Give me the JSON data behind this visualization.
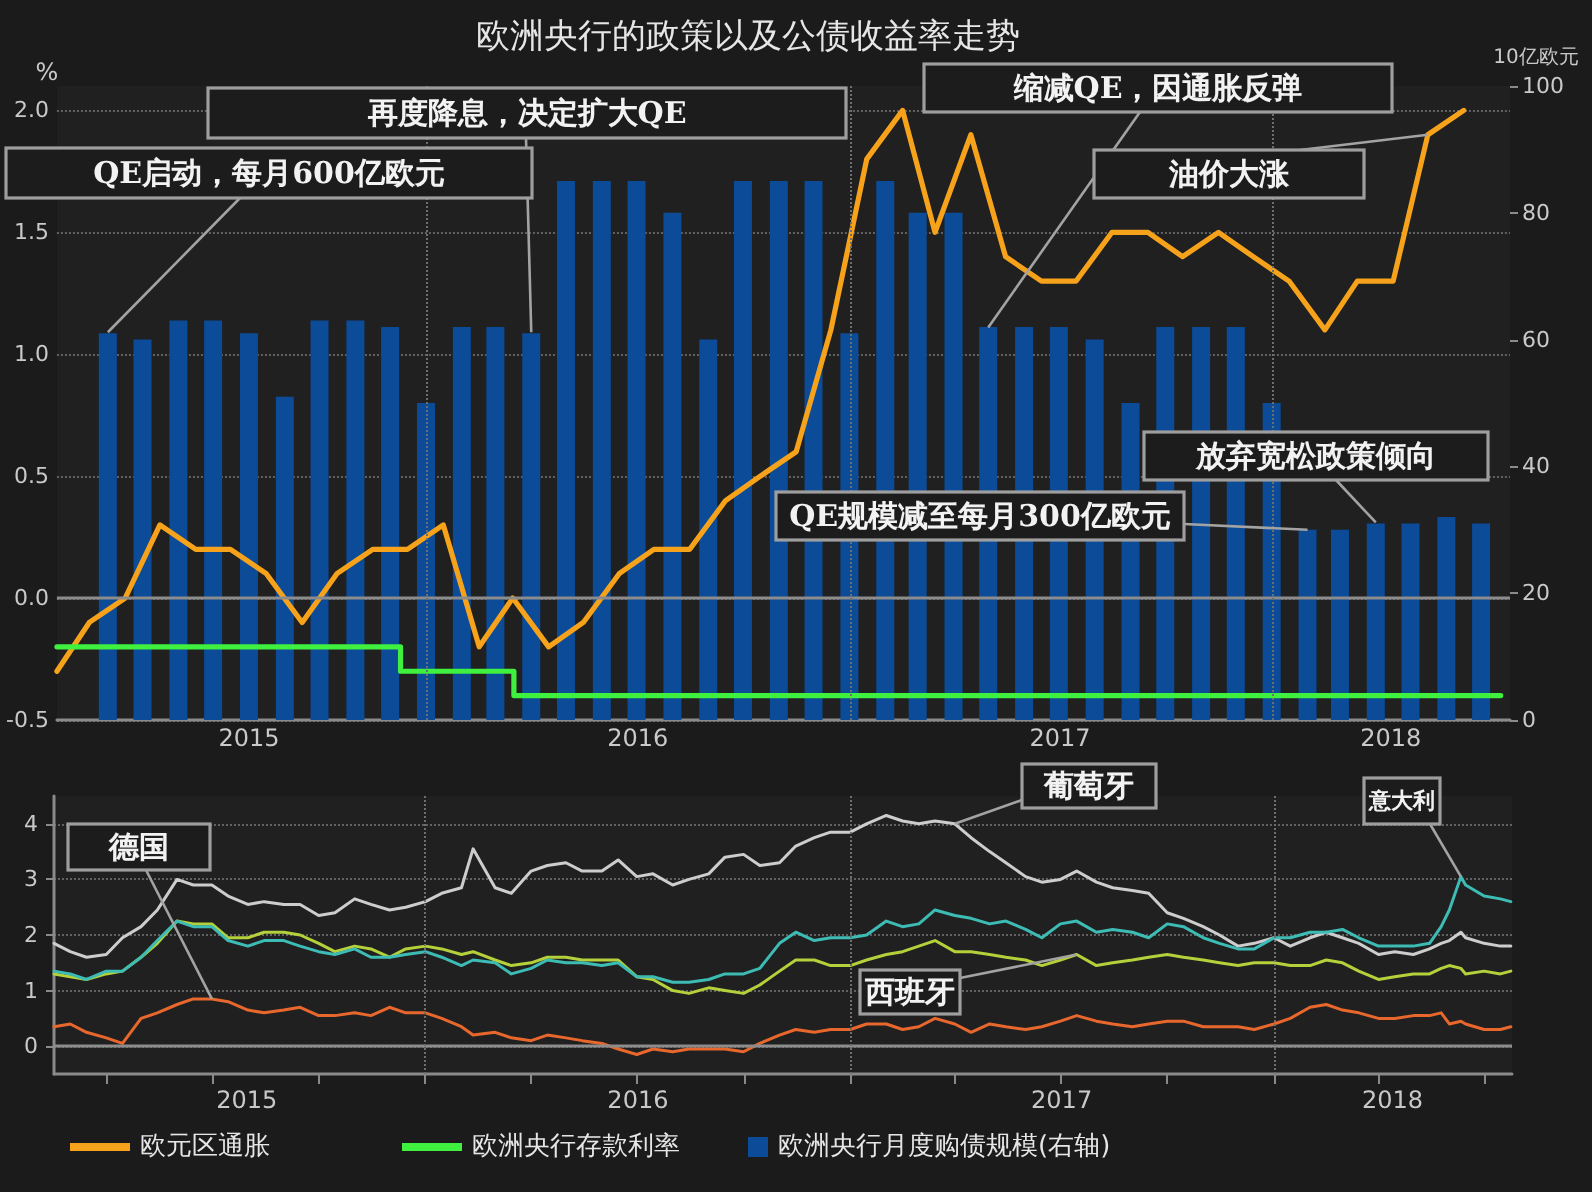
{
  "chart_data": [
    {
      "type": "line",
      "title": "欧洲央行的政策以及公债收益率走势",
      "ylabel": "%",
      "y2label": "10亿欧元",
      "xlim": [
        "2015-02-15",
        "2018-07-25"
      ],
      "xticks": [
        {
          "value": "2015-07-31",
          "label": "2015"
        },
        {
          "value": "2016-07-01",
          "label": "2016"
        },
        {
          "value": "2017-07-01",
          "label": "2017"
        },
        {
          "value": "2018-04-13",
          "label": "2018"
        }
      ],
      "ylim": [
        -0.5,
        2.1
      ],
      "yticks": [
        -0.5,
        {
          "value": 0,
          "label": "0.0"
        },
        0.5,
        {
          "value": 1,
          "label": "1.0"
        },
        1.5,
        {
          "value": 2,
          "label": "2.0"
        }
      ],
      "y2lim": [
        0,
        100
      ],
      "y2ticks": [
        0,
        20,
        40,
        60,
        80,
        100
      ],
      "grid": "y",
      "legend": "bottom",
      "marker": "none",
      "series": [
        {
          "name": "欧元区通胀",
          "color": "#f7a21b",
          "x": [
            "2015-02-15",
            "2015-03-15",
            "2015-04-15",
            "2015-05-15",
            "2015-06-15",
            "2015-07-15",
            "2015-08-15",
            "2015-09-15",
            "2015-10-15",
            "2015-11-15",
            "2015-12-15",
            "2016-01-15",
            "2016-02-15",
            "2016-03-15",
            "2016-04-15",
            "2016-05-15",
            "2016-06-15",
            "2016-07-15",
            "2016-08-15",
            "2016-09-15",
            "2016-10-15",
            "2016-11-15",
            "2016-12-15",
            "2017-01-15",
            "2017-02-15",
            "2017-03-15",
            "2017-04-15",
            "2017-05-15",
            "2017-06-15",
            "2017-07-15",
            "2017-08-15",
            "2017-09-15",
            "2017-10-15",
            "2017-11-15",
            "2017-12-15",
            "2018-01-15",
            "2018-02-15",
            "2018-03-15",
            "2018-04-15",
            "2018-05-15",
            "2018-06-15"
          ],
          "values": [
            -0.3,
            -0.1,
            0.0,
            0.3,
            0.2,
            0.2,
            0.1,
            -0.1,
            0.1,
            0.2,
            0.2,
            0.3,
            -0.2,
            0.0,
            -0.2,
            -0.1,
            0.1,
            0.2,
            0.2,
            0.4,
            0.5,
            0.6,
            1.1,
            1.8,
            2.0,
            1.5,
            1.9,
            1.4,
            1.3,
            1.3,
            1.5,
            1.5,
            1.4,
            1.5,
            1.4,
            1.3,
            1.1,
            1.3,
            1.3,
            1.9,
            2.0
          ]
        },
        {
          "name": "欧洲央行存款利率",
          "type": "step",
          "color": "#3ff03f",
          "x": [
            "2015-02-15",
            "2015-12-09",
            "2016-03-16",
            "2018-07-17"
          ],
          "values": [
            -0.2,
            -0.3,
            -0.4,
            -0.4
          ]
        },
        {
          "name": "欧洲央行月度购债规模(右轴)",
          "type": "bar",
          "axis": "y2",
          "color": "#0b4b98",
          "x": [
            "2015-03-31",
            "2015-04-30",
            "2015-05-31",
            "2015-06-30",
            "2015-07-31",
            "2015-08-31",
            "2015-09-30",
            "2015-10-31",
            "2015-11-30",
            "2015-12-31",
            "2016-01-31",
            "2016-02-29",
            "2016-03-31",
            "2016-04-30",
            "2016-05-31",
            "2016-06-30",
            "2016-07-31",
            "2016-08-31",
            "2016-09-30",
            "2016-10-31",
            "2016-11-30",
            "2016-12-31",
            "2017-01-31",
            "2017-02-28",
            "2017-03-31",
            "2017-04-30",
            "2017-05-31",
            "2017-06-30",
            "2017-07-31",
            "2017-08-31",
            "2017-09-30",
            "2017-10-31",
            "2017-11-30",
            "2017-12-31",
            "2018-01-31",
            "2018-02-28",
            "2018-03-31",
            "2018-04-30",
            "2018-05-31",
            "2018-06-30"
          ],
          "values": [
            61,
            60,
            63,
            63,
            61,
            51,
            63,
            63,
            62,
            50,
            62,
            62,
            61,
            85,
            85,
            85,
            80,
            60,
            85,
            85,
            85,
            61,
            85,
            80,
            80,
            62,
            62,
            62,
            60,
            50,
            62,
            62,
            62,
            50,
            30,
            30,
            31,
            31,
            32,
            31
          ]
        }
      ],
      "ref_lines": [
        {
          "axis": "y",
          "value": 0,
          "line_style": "solid",
          "color": "#8c8c8c"
        },
        {
          "axis": "x",
          "value": "2016-01-01",
          "line_style": "dotted",
          "color": "#6e6e6e"
        },
        {
          "axis": "x",
          "value": "2017-01-01",
          "line_style": "dotted",
          "color": "#6e6e6e"
        },
        {
          "axis": "x",
          "value": "2018-01-01",
          "line_style": "dotted",
          "color": "#6e6e6e"
        }
      ],
      "annotations": [
        {
          "text": "QE启动，每月600亿欧元",
          "x": "2015-03-31",
          "y": 1.09
        },
        {
          "text": "再度降息，决定扩大QE",
          "x": "2016-03-31",
          "y": 1.09
        },
        {
          "text": "缩减QE，因通胀反弹",
          "x": "2017-04-30",
          "y": 1.11
        },
        {
          "text": "油价大涨",
          "x": "2018-05-15",
          "y": 1.9
        },
        {
          "text": "放弃宽松政策倾向",
          "x": "2018-03-31",
          "y": 0.31
        },
        {
          "text": "QE规模减至每月300亿欧元",
          "x": "2018-01-31",
          "y": 0.28
        }
      ]
    },
    {
      "type": "line",
      "legend": false,
      "marker": "none",
      "xlim": [
        "2015-02-15",
        "2018-07-25"
      ],
      "xticks": [
        {
          "value": "2015-04-01",
          "label": null
        },
        {
          "value": "2015-07-01",
          "label": null
        },
        {
          "value": "2015-07-31",
          "label": "2015"
        },
        {
          "value": "2015-10-01",
          "label": null
        },
        {
          "value": "2016-01-01",
          "label": null
        },
        {
          "value": "2016-04-01",
          "label": null
        },
        {
          "value": "2016-07-01",
          "label": null
        },
        {
          "value": "2016-07-02",
          "label": "2016"
        },
        {
          "value": "2016-10-01",
          "label": null
        },
        {
          "value": "2017-01-01",
          "label": null
        },
        {
          "value": "2017-04-01",
          "label": null
        },
        {
          "value": "2017-07-01",
          "label": null
        },
        {
          "value": "2017-07-02",
          "label": "2017"
        },
        {
          "value": "2017-10-01",
          "label": null
        },
        {
          "value": "2018-01-01",
          "label": null
        },
        {
          "value": "2018-04-01",
          "label": null
        },
        {
          "value": "2018-04-13",
          "label": "2018"
        },
        {
          "value": "2018-07-01",
          "label": null
        }
      ],
      "ylim": [
        -0.5,
        4.5
      ],
      "yticks": [
        0,
        1,
        2,
        3,
        4
      ],
      "grid": "y",
      "x": [
        "2015-02-15",
        "2015-03-01",
        "2015-03-15",
        "2015-04-01",
        "2015-04-15",
        "2015-05-01",
        "2015-05-15",
        "2015-06-01",
        "2015-06-15",
        "2015-07-01",
        "2015-07-15",
        "2015-08-01",
        "2015-08-15",
        "2015-09-01",
        "2015-09-15",
        "2015-10-01",
        "2015-10-15",
        "2015-11-01",
        "2015-11-15",
        "2015-12-01",
        "2015-12-15",
        "2016-01-01",
        "2016-01-15",
        "2016-02-01",
        "2016-02-11",
        "2016-03-01",
        "2016-03-15",
        "2016-04-01",
        "2016-04-15",
        "2016-05-01",
        "2016-05-15",
        "2016-06-01",
        "2016-06-15",
        "2016-07-01",
        "2016-07-15",
        "2016-08-01",
        "2016-08-15",
        "2016-09-01",
        "2016-09-15",
        "2016-10-01",
        "2016-10-15",
        "2016-11-01",
        "2016-11-15",
        "2016-12-01",
        "2016-12-15",
        "2017-01-01",
        "2017-01-15",
        "2017-02-01",
        "2017-02-15",
        "2017-03-01",
        "2017-03-15",
        "2017-04-01",
        "2017-04-15",
        "2017-05-01",
        "2017-05-15",
        "2017-06-01",
        "2017-06-15",
        "2017-07-01",
        "2017-07-15",
        "2017-08-01",
        "2017-08-15",
        "2017-09-01",
        "2017-09-15",
        "2017-10-01",
        "2017-10-15",
        "2017-11-01",
        "2017-11-15",
        "2017-12-01",
        "2017-12-15",
        "2018-01-01",
        "2018-01-15",
        "2018-02-01",
        "2018-02-15",
        "2018-03-01",
        "2018-03-15",
        "2018-04-01",
        "2018-04-15",
        "2018-05-01",
        "2018-05-15",
        "2018-05-25",
        "2018-06-01",
        "2018-06-11",
        "2018-06-15",
        "2018-07-01",
        "2018-07-15",
        "2018-07-24"
      ],
      "series": [
        {
          "name": "德国",
          "color": "#e8672c",
          "values": [
            0.35,
            0.4,
            0.25,
            0.15,
            0.05,
            0.5,
            0.6,
            0.75,
            0.85,
            0.85,
            0.8,
            0.65,
            0.6,
            0.65,
            0.7,
            0.55,
            0.55,
            0.6,
            0.55,
            0.7,
            0.6,
            0.6,
            0.5,
            0.35,
            0.2,
            0.25,
            0.15,
            0.1,
            0.2,
            0.15,
            0.1,
            0.05,
            -0.05,
            -0.15,
            -0.05,
            -0.1,
            -0.05,
            -0.05,
            -0.05,
            -0.1,
            0.05,
            0.2,
            0.3,
            0.25,
            0.3,
            0.3,
            0.4,
            0.4,
            0.3,
            0.35,
            0.5,
            0.4,
            0.25,
            0.4,
            0.35,
            0.3,
            0.35,
            0.45,
            0.55,
            0.45,
            0.4,
            0.35,
            0.4,
            0.45,
            0.45,
            0.35,
            0.35,
            0.35,
            0.3,
            0.4,
            0.5,
            0.7,
            0.75,
            0.65,
            0.6,
            0.5,
            0.5,
            0.55,
            0.55,
            0.6,
            0.4,
            0.45,
            0.4,
            0.3,
            0.3,
            0.35
          ]
        },
        {
          "name": "葡萄牙",
          "color": "#cdcdcd",
          "values": [
            1.85,
            1.7,
            1.6,
            1.65,
            1.95,
            2.15,
            2.45,
            3.0,
            2.9,
            2.9,
            2.7,
            2.55,
            2.6,
            2.55,
            2.55,
            2.35,
            2.4,
            2.65,
            2.55,
            2.45,
            2.5,
            2.6,
            2.75,
            2.85,
            3.55,
            2.85,
            2.75,
            3.15,
            3.25,
            3.3,
            3.15,
            3.15,
            3.35,
            3.05,
            3.1,
            2.9,
            3.0,
            3.1,
            3.4,
            3.45,
            3.25,
            3.3,
            3.6,
            3.75,
            3.85,
            3.85,
            4.0,
            4.15,
            4.05,
            4.0,
            4.05,
            4.0,
            3.75,
            3.5,
            3.3,
            3.05,
            2.95,
            3.0,
            3.15,
            2.95,
            2.85,
            2.8,
            2.75,
            2.4,
            2.3,
            2.15,
            2.0,
            1.8,
            1.85,
            1.95,
            1.8,
            1.95,
            2.05,
            1.95,
            1.85,
            1.65,
            1.7,
            1.65,
            1.75,
            1.85,
            1.9,
            2.05,
            1.95,
            1.85,
            1.8,
            1.8
          ]
        },
        {
          "name": "西班牙",
          "color": "#b4d03a",
          "values": [
            1.3,
            1.25,
            1.2,
            1.3,
            1.35,
            1.6,
            1.85,
            2.25,
            2.2,
            2.2,
            1.95,
            1.95,
            2.05,
            2.05,
            2.0,
            1.85,
            1.7,
            1.8,
            1.75,
            1.6,
            1.75,
            1.8,
            1.75,
            1.65,
            1.7,
            1.55,
            1.45,
            1.5,
            1.6,
            1.6,
            1.55,
            1.55,
            1.55,
            1.25,
            1.2,
            1.0,
            0.95,
            1.05,
            1.0,
            0.95,
            1.1,
            1.35,
            1.55,
            1.55,
            1.45,
            1.45,
            1.55,
            1.65,
            1.7,
            1.8,
            1.9,
            1.7,
            1.7,
            1.65,
            1.6,
            1.55,
            1.45,
            1.55,
            1.65,
            1.45,
            1.5,
            1.55,
            1.6,
            1.65,
            1.6,
            1.55,
            1.5,
            1.45,
            1.5,
            1.5,
            1.45,
            1.45,
            1.55,
            1.5,
            1.35,
            1.2,
            1.25,
            1.3,
            1.3,
            1.4,
            1.45,
            1.4,
            1.3,
            1.35,
            1.3,
            1.35
          ]
        },
        {
          "name": "意大利",
          "color": "#3cbcb4",
          "values": [
            1.35,
            1.3,
            1.2,
            1.35,
            1.35,
            1.6,
            1.9,
            2.25,
            2.15,
            2.15,
            1.9,
            1.8,
            1.9,
            1.9,
            1.8,
            1.7,
            1.65,
            1.75,
            1.6,
            1.6,
            1.65,
            1.7,
            1.6,
            1.45,
            1.55,
            1.5,
            1.3,
            1.4,
            1.55,
            1.5,
            1.5,
            1.45,
            1.5,
            1.25,
            1.25,
            1.15,
            1.15,
            1.2,
            1.3,
            1.3,
            1.4,
            1.85,
            2.05,
            1.9,
            1.95,
            1.95,
            2.0,
            2.25,
            2.15,
            2.2,
            2.45,
            2.35,
            2.3,
            2.2,
            2.25,
            2.1,
            1.95,
            2.2,
            2.25,
            2.05,
            2.1,
            2.05,
            1.95,
            2.2,
            2.15,
            1.95,
            1.85,
            1.75,
            1.75,
            1.95,
            1.95,
            2.05,
            2.05,
            2.1,
            1.95,
            1.8,
            1.8,
            1.8,
            1.85,
            2.15,
            2.45,
            3.05,
            2.9,
            2.7,
            2.65,
            2.6
          ]
        }
      ],
      "ref_lines": [
        {
          "axis": "y",
          "value": 0,
          "line_style": "solid",
          "color": "#8c8c8c"
        },
        {
          "axis": "x",
          "value": "2016-01-01",
          "line_style": "dotted",
          "color": "#6e6e6e"
        },
        {
          "axis": "x",
          "value": "2017-01-01",
          "line_style": "dotted",
          "color": "#6e6e6e"
        },
        {
          "axis": "x",
          "value": "2018-01-01",
          "line_style": "dotted",
          "color": "#6e6e6e"
        }
      ]
    }
  ]
}
